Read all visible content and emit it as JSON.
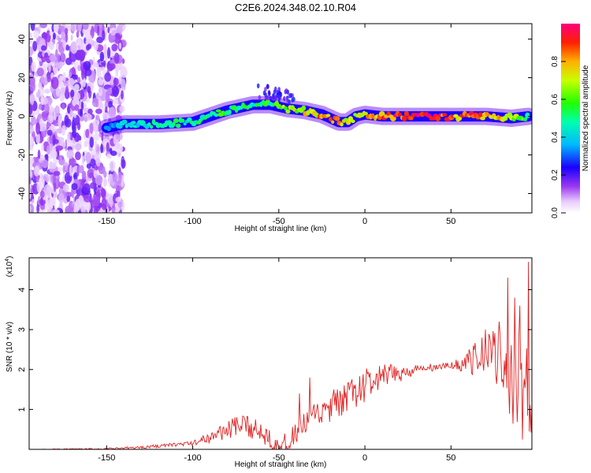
{
  "title": "C2E6.2024.348.02.10.R04",
  "chart_data": [
    {
      "type": "heatmap",
      "xlabel": "Height of straight line (km)",
      "ylabel": "Frequency (Hz)",
      "xlim": [
        -195,
        97
      ],
      "ylim": [
        -50,
        48
      ],
      "xticks": [
        -150,
        -100,
        -50,
        0,
        50
      ],
      "yticks": [
        -40,
        -20,
        0,
        20,
        40
      ],
      "grid": false,
      "colorbar": {
        "label": "Normalized spectral amplitude",
        "range": [
          0,
          1
        ],
        "ticks": [
          0.0,
          0.2,
          0.4,
          0.6,
          0.8
        ],
        "colormap": "rainbow (white-violet-blue-cyan-green-yellow-red-magenta)"
      },
      "noise_region_x": [
        -195,
        -140
      ],
      "ridge": {
        "x": [
          -150,
          -140,
          -120,
          -100,
          -80,
          -65,
          -55,
          -45,
          -35,
          -25,
          -15,
          -10,
          -5,
          0,
          10,
          30,
          50,
          70,
          85,
          95
        ],
        "y": [
          -6,
          -4,
          -4,
          -3,
          3,
          6,
          6,
          4,
          3,
          1,
          -3,
          -3,
          0,
          1,
          0,
          0,
          0,
          0,
          -1,
          0
        ],
        "peak_amplitude": [
          0.35,
          0.45,
          0.5,
          0.55,
          0.6,
          0.55,
          0.6,
          0.7,
          0.8,
          0.9,
          0.85,
          0.75,
          0.8,
          0.85,
          0.95,
          1.0,
          0.95,
          0.9,
          0.75,
          0.6
        ]
      }
    },
    {
      "type": "line",
      "xlabel": "Height of straight line (km)",
      "ylabel": "SNR (10 * v/v)",
      "y_multiplier": "(x10",
      "y_multiplier_exp": "4",
      "multiplier_close": ")",
      "xlim": [
        -195,
        97
      ],
      "ylim": [
        0,
        4.8
      ],
      "xticks": [
        -150,
        -100,
        -50,
        0,
        50
      ],
      "yticks": [
        1,
        2,
        3,
        4
      ],
      "grid": false,
      "series": [
        {
          "color": "#e02020",
          "envelope_x": [
            -195,
            -150,
            -130,
            -110,
            -100,
            -90,
            -80,
            -70,
            -60,
            -50,
            -45,
            -40,
            -30,
            -20,
            -10,
            0,
            10,
            20,
            30,
            40,
            50,
            60,
            70,
            80,
            85,
            90,
            95
          ],
          "envelope_y": [
            0.0,
            0.01,
            0.05,
            0.12,
            0.15,
            0.3,
            0.5,
            0.6,
            0.45,
            0.15,
            0.08,
            0.4,
            0.8,
            1.0,
            1.3,
            1.6,
            1.8,
            1.9,
            2.0,
            2.05,
            2.1,
            2.2,
            2.35,
            2.3,
            1.6,
            1.7,
            1.2
          ],
          "ripple_x": [
            -195,
            -100,
            -80,
            -40,
            0,
            30,
            50,
            60,
            75,
            85,
            95
          ],
          "ripple": [
            0.0,
            0.05,
            0.25,
            0.3,
            0.45,
            0.12,
            0.08,
            0.3,
            0.7,
            1.2,
            1.4
          ],
          "spikes": [
            [
              -38,
              1.4
            ],
            [
              -32,
              1.8
            ],
            [
              -18,
              1.5
            ],
            [
              -2,
              1.4
            ],
            [
              28,
              1.9
            ],
            [
              55,
              2.1
            ],
            [
              63,
              2.6
            ],
            [
              70,
              3.0
            ],
            [
              78,
              3.2
            ],
            [
              83,
              4.3
            ],
            [
              87,
              3.8
            ],
            [
              90,
              3.6
            ],
            [
              95,
              4.7
            ]
          ]
        }
      ]
    }
  ]
}
